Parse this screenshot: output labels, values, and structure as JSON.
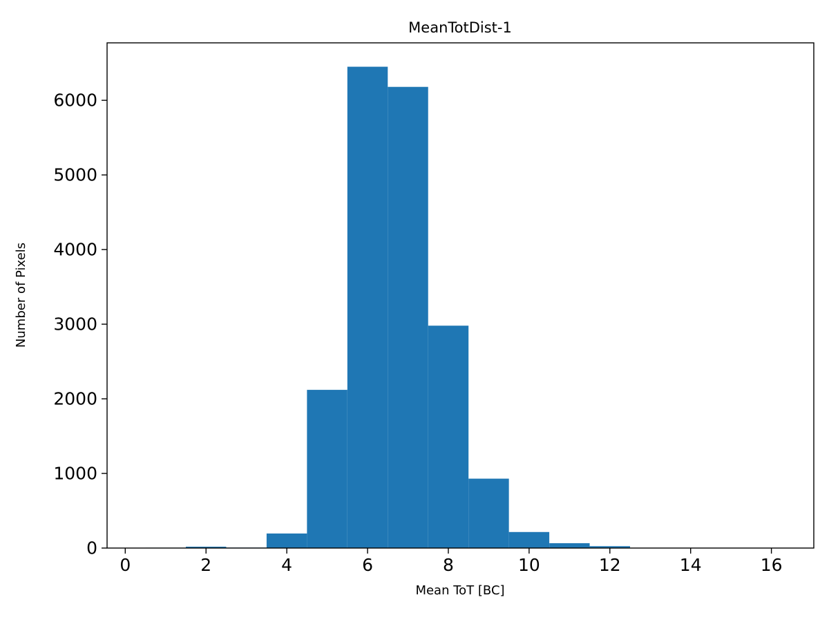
{
  "figure": {
    "background": "#ffffff",
    "spine_color": "#000000"
  },
  "chart_data": {
    "type": "bar",
    "subtype": "histogram",
    "title": "MeanTotDist-1",
    "xlabel": "Mean ToT [BC]",
    "ylabel": "Number of Pixels",
    "bar_color": "#1f77b4",
    "bin_edges": [
      0.5,
      1.5,
      2.5,
      3.5,
      4.5,
      5.5,
      6.5,
      7.5,
      8.5,
      9.5,
      10.5,
      11.5,
      12.5
    ],
    "counts": [
      5,
      18,
      6,
      195,
      2120,
      6450,
      6180,
      2980,
      930,
      215,
      65,
      25
    ],
    "xlim": [
      -0.45,
      17.05
    ],
    "ylim": [
      0,
      6770
    ],
    "xticks": [
      0,
      2,
      4,
      6,
      8,
      10,
      12,
      14,
      16
    ],
    "yticks": [
      0,
      1000,
      2000,
      3000,
      4000,
      5000,
      6000
    ],
    "grid": false,
    "legend": null
  }
}
